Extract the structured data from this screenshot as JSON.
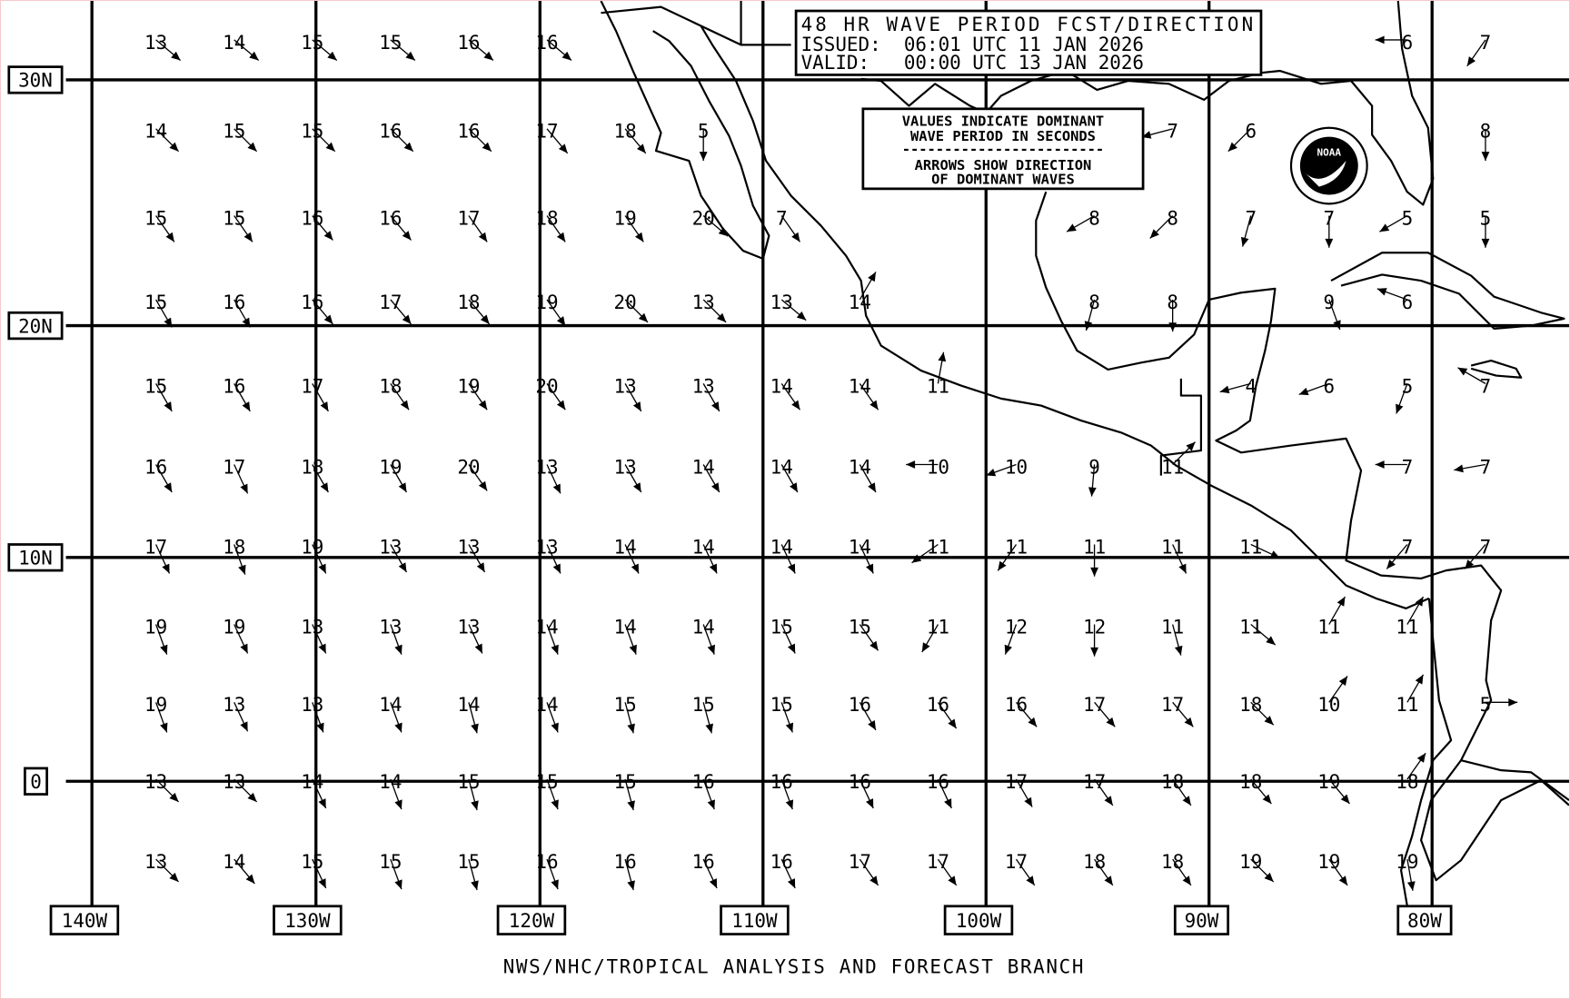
{
  "title_box": {
    "line1": "48 HR WAVE PERIOD FCST/DIRECTION",
    "line2": "ISSUED:  06:01 UTC 11 JAN 2026",
    "line3": "VALID:   00:00 UTC 13 JAN 2026"
  },
  "legend_box": {
    "line1": "VALUES INDICATE DOMINANT",
    "line2": "WAVE PERIOD IN SECONDS",
    "divider": "------------------------",
    "line3": "ARROWS SHOW DIRECTION",
    "line4": "OF DOMINANT WAVES"
  },
  "logo": {
    "text": "NOAA"
  },
  "footer": "NWS/NHC/TROPICAL ANALYSIS AND FORECAST BRANCH",
  "lat_labels": [
    "30N",
    "20N",
    "10N",
    "0"
  ],
  "lon_labels": [
    "140W",
    "130W",
    "120W",
    "110W",
    "100W",
    "90W",
    "80W"
  ],
  "wave_grid": {
    "units": "seconds",
    "direction_note": "arrow direction in compass degrees (toward)",
    "rows": [
      [
        "13@130",
        "14@130",
        "15@130",
        "15@130",
        "16@130",
        "16@130",
        null,
        null,
        null,
        null,
        null,
        null,
        null,
        null,
        null,
        null,
        "6@270",
        "7@215"
      ],
      [
        "14@135",
        "15@135",
        "15@135",
        "16@135",
        "16@135",
        "17@140",
        "18@140",
        "5@180",
        null,
        null,
        null,
        null,
        null,
        "7@255",
        "6@225",
        null,
        null,
        "8@180"
      ],
      [
        "15@145",
        "15@145",
        "16@140",
        "16@140",
        "17@145",
        "18@145",
        "19@145",
        "20@130",
        "7@145",
        null,
        null,
        null,
        "8@240",
        "8@225",
        "7@195",
        "7@180",
        "5@240",
        "5@180"
      ],
      [
        "15@150",
        "16@150",
        "16@140",
        "17@140",
        "18@140",
        "19@145",
        "20@135",
        "13@135",
        "13@130",
        "14@30",
        null,
        null,
        "8@195",
        "8@180",
        null,
        "9@160",
        "6@290",
        null
      ],
      [
        "15@150",
        "16@150",
        "17@150",
        "18@145",
        "19@145",
        "20@145",
        "13@150",
        "13@150",
        "14@145",
        "14@145",
        "11@10",
        null,
        null,
        null,
        "4@255",
        "6@250",
        "5@200",
        "7@300"
      ],
      [
        "16@150",
        "17@155",
        "18@150",
        "19@150",
        "20@145",
        "13@155",
        "13@150",
        "14@150",
        "14@150",
        "14@150",
        "10@270",
        "10@250",
        "9@185",
        "11@45",
        null,
        null,
        "7@270",
        "7@260"
      ],
      [
        "17@155",
        "18@160",
        "19@155",
        "13@150",
        "13@150",
        "13@155",
        "14@155",
        "14@155",
        "14@155",
        "14@155",
        "11@235",
        "11@215",
        "11@180",
        "11@155",
        "11@115",
        null,
        "7@220",
        "7@220"
      ],
      [
        "19@160",
        "19@155",
        "13@155",
        "13@160",
        "13@155",
        "14@160",
        "14@160",
        "14@160",
        "15@155",
        "15@145",
        "11@210",
        "12@200",
        "12@180",
        "11@165",
        "11@130",
        "11@30",
        "11@30",
        null
      ],
      [
        "19@160",
        "13@155",
        "13@160",
        "14@160",
        "14@165",
        "14@160",
        "15@165",
        "15@165",
        "15@160",
        "16@150",
        "16@145",
        "16@140",
        "17@140",
        "17@140",
        "18@135",
        "10@35",
        "11@30",
        "5@90"
      ],
      [
        "13@135",
        "13@135",
        "14@155",
        "14@160",
        "15@165",
        "15@160",
        "15@165",
        "16@160",
        "16@160",
        "16@155",
        "16@155",
        "17@150",
        "17@145",
        "18@145",
        "18@140",
        "19@140",
        "18@35",
        null
      ],
      [
        "13@135",
        "14@140",
        "15@155",
        "15@160",
        "15@165",
        "16@160",
        "16@165",
        "16@155",
        "16@155",
        "17@145",
        "17@145",
        "17@145",
        "18@145",
        "18@145",
        "19@135",
        "19@145",
        "19@170",
        null
      ]
    ]
  }
}
